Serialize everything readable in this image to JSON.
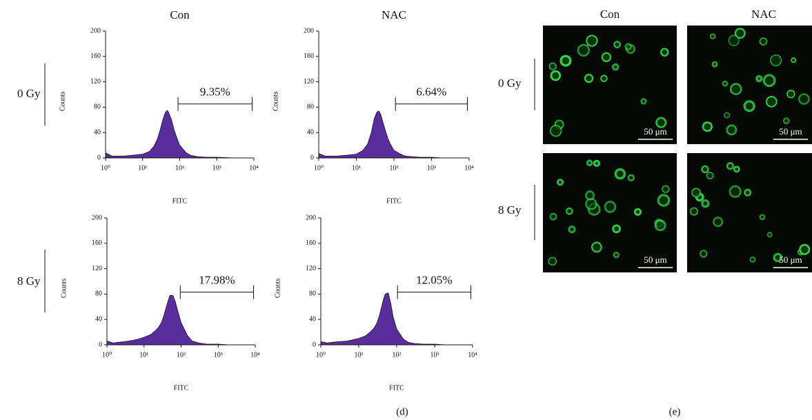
{
  "chart_data": [
    {
      "type": "area",
      "title": "Con",
      "xlabel": "FITC",
      "ylabel": "Counts",
      "log_x": true,
      "color": "#5a2d9c",
      "x": [
        1,
        1.5,
        2,
        3,
        5,
        7,
        10,
        15,
        20,
        25,
        30,
        35,
        40,
        45,
        50,
        60,
        70,
        80,
        100,
        150,
        200,
        300,
        500,
        1000,
        3000
      ],
      "values": [
        8,
        3,
        3,
        3,
        4,
        5,
        6,
        10,
        18,
        30,
        45,
        60,
        70,
        75,
        72,
        60,
        45,
        35,
        20,
        8,
        4,
        2,
        1,
        1,
        0
      ],
      "xlim": [
        1,
        10000
      ],
      "xticks": [
        {
          "value": 1,
          "label": "10⁰"
        },
        {
          "value": 10,
          "label": "10¹"
        },
        {
          "value": 100,
          "label": "10²"
        },
        {
          "value": 1000,
          "label": "10³"
        },
        {
          "value": 10000,
          "label": "10⁴"
        }
      ],
      "ylim": [
        0,
        200
      ],
      "yticks": [
        0,
        40,
        80,
        120,
        160,
        200
      ],
      "annotation": {
        "text": "9.35%",
        "x": [
          90,
          9000
        ],
        "y": 85
      }
    },
    {
      "type": "area",
      "title": "NAC",
      "xlabel": "FITC",
      "ylabel": "Counts",
      "log_x": true,
      "color": "#5a2d9c",
      "x": [
        1,
        1.5,
        2,
        3,
        5,
        7,
        10,
        15,
        20,
        25,
        30,
        35,
        40,
        45,
        50,
        60,
        70,
        80,
        100,
        150,
        200,
        300,
        500,
        1000,
        2000
      ],
      "values": [
        7,
        3,
        3,
        3,
        4,
        5,
        6,
        12,
        22,
        40,
        62,
        72,
        74,
        68,
        58,
        42,
        30,
        22,
        12,
        6,
        3,
        2,
        1,
        1,
        0
      ],
      "xlim": [
        1,
        10000
      ],
      "xticks": [
        {
          "value": 1,
          "label": "10⁰"
        },
        {
          "value": 10,
          "label": "10¹"
        },
        {
          "value": 100,
          "label": "10²"
        },
        {
          "value": 1000,
          "label": "10³"
        },
        {
          "value": 10000,
          "label": "10⁴"
        }
      ],
      "ylim": [
        0,
        200
      ],
      "yticks": [
        0,
        40,
        80,
        120,
        160,
        200
      ],
      "annotation": {
        "text": "6.64%",
        "x": [
          110,
          9000
        ],
        "y": 85
      }
    },
    {
      "type": "area",
      "xlabel": "FITC",
      "ylabel": "Counts",
      "log_x": true,
      "color": "#5a2d9c",
      "x": [
        1,
        1.5,
        2,
        3,
        5,
        7,
        10,
        15,
        20,
        25,
        30,
        35,
        40,
        45,
        50,
        60,
        70,
        80,
        100,
        150,
        200,
        300,
        500,
        1000,
        2000
      ],
      "values": [
        6,
        3,
        4,
        5,
        7,
        9,
        12,
        16,
        22,
        28,
        36,
        48,
        60,
        70,
        78,
        78,
        68,
        55,
        35,
        14,
        6,
        3,
        1,
        1,
        0
      ],
      "xlim": [
        1,
        10000
      ],
      "xticks": [
        {
          "value": 1,
          "label": "10⁰"
        },
        {
          "value": 10,
          "label": "10¹"
        },
        {
          "value": 100,
          "label": "10²"
        },
        {
          "value": 1000,
          "label": "10³"
        },
        {
          "value": 10000,
          "label": "10⁴"
        }
      ],
      "ylim": [
        0,
        200
      ],
      "yticks": [
        0,
        40,
        80,
        120,
        160,
        200
      ],
      "annotation": {
        "text": "17.98%",
        "x": [
          95,
          9000
        ],
        "y": 83
      }
    },
    {
      "type": "area",
      "xlabel": "FITC",
      "ylabel": "Counts",
      "log_x": true,
      "color": "#5a2d9c",
      "x": [
        1,
        1.5,
        2,
        3,
        5,
        7,
        10,
        15,
        20,
        25,
        30,
        35,
        40,
        45,
        50,
        60,
        70,
        80,
        100,
        150,
        200,
        300,
        500,
        1000,
        2000
      ],
      "values": [
        5,
        3,
        4,
        5,
        6,
        8,
        10,
        14,
        20,
        26,
        34,
        46,
        60,
        72,
        80,
        82,
        65,
        45,
        25,
        9,
        4,
        2,
        1,
        1,
        0
      ],
      "xlim": [
        1,
        10000
      ],
      "xticks": [
        {
          "value": 1,
          "label": "10⁰"
        },
        {
          "value": 10,
          "label": "10¹"
        },
        {
          "value": 100,
          "label": "10²"
        },
        {
          "value": 1000,
          "label": "10³"
        },
        {
          "value": 10000,
          "label": "10⁴"
        }
      ],
      "ylim": [
        0,
        200
      ],
      "yticks": [
        0,
        40,
        80,
        120,
        160,
        200
      ],
      "annotation": {
        "text": "12.05%",
        "x": [
          105,
          9000
        ],
        "y": 83
      }
    }
  ],
  "panel_d": {
    "row_labels": [
      "0 Gy",
      "8 Gy"
    ],
    "label": "(d)"
  },
  "panel_e": {
    "col_titles": [
      "Con",
      "NAC"
    ],
    "row_labels": [
      "0 Gy",
      "8 Gy"
    ],
    "scale_bar": "50 μm",
    "label": "(e)"
  }
}
